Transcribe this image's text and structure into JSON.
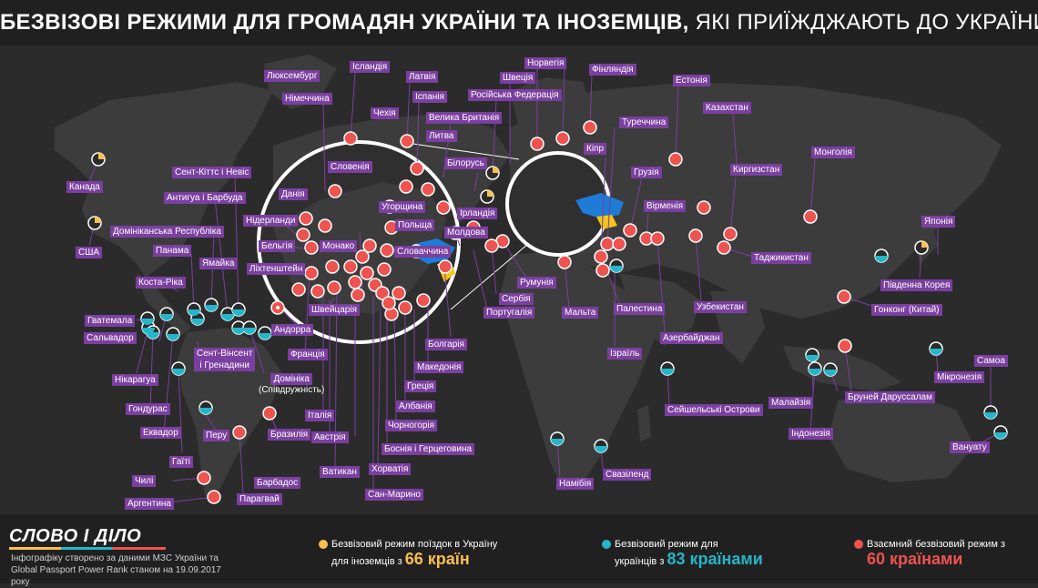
{
  "title": {
    "bold": "БЕЗВІЗОВІ РЕЖИМИ ДЛЯ ГРОМАДЯН УКРАЇНИ ТА ІНОЗЕМЦІВ,",
    "light": "ЯКІ ПРИЇЖДЖАЮТЬ ДО УКРАЇНИ"
  },
  "colors": {
    "yellow": "#fbbf4d",
    "cyan": "#25b6c9",
    "red": "#ef5350",
    "label_bg": "#7b3fa0",
    "land": "#3b3b3b",
    "ukraine_blue": "#1e7bd6",
    "ukraine_yellow": "#f5c518"
  },
  "labels": [
    "Люксембург",
    "Ісландія",
    "Норвегія",
    "Латвія",
    "Швеція",
    "Фінляндія",
    "Естонія",
    "Іспанія",
    "Російська Федерація",
    "Німеччина",
    "Чехія",
    "Велика Британія",
    "Казахстан",
    "Литва",
    "Туреччина",
    "Кіпр",
    "Монголія",
    "Словенія",
    "Білорусь",
    "Сент-Кіттс і Невіс",
    "Грузія",
    "Киргизстан",
    "Канада",
    "Данія",
    "Антигуа і Барбуда",
    "Угорщина",
    "Ірландія",
    "Вірменія",
    "Нідерланди",
    "Польща",
    "Японія",
    "Домініканська Республіка",
    "Бельгія",
    "Монако",
    "Молдова",
    "Панама",
    "Словаччина",
    "США",
    "Ямайка",
    "Ліхтенштейн",
    "Таджикистан",
    "Коста-Ріка",
    "Румунія",
    "Південна Корея",
    "Сербія",
    "Португалія",
    "Мальта",
    "Палестина",
    "Узбекистан",
    "Гонконг (Китай)",
    "Швейцарія",
    "Гватемала",
    "Андорра",
    "Сальвадор",
    "Болгарія",
    "Азербайджан",
    "Франція",
    "Ізраїль",
    "Македонія",
    "Самоа",
    "Нікарагуа",
    "Греція",
    "Мікронезія",
    "Малайзія",
    "Бруней Даруссалам",
    "Гондурас",
    "Албанія",
    "Сейшельські Острови",
    "Італія",
    "Чорногорія",
    "Еквадор",
    "Перу",
    "Бразилія",
    "Австрія",
    "Індонезія",
    "Боснія і Герцеговина",
    "Вануату",
    "Гаїті",
    "Ватикан",
    "Хорватія",
    "Свазіленд",
    "Намібія",
    "Чилі",
    "Барбадос",
    "Сан-Марино",
    "Аргентина",
    "Парагвай"
  ],
  "two_line_labels": {
    "grenadines": [
      "Сент-Вінсент",
      "і Гренадини"
    ]
  },
  "plain_labels": {
    "dominica": [
      "Домініка",
      "(Співдружність)"
    ]
  },
  "footer": {
    "logo": "СЛОВО І ДІЛО",
    "source": "Інфографіку створено за даними МЗС України та Global Passport Power Rank станом на 19.09.2017 року",
    "legend": [
      {
        "line1": "Безвізовий режим поїздок в Україну",
        "line2": "для іноземців з",
        "count": "66 країн",
        "color": "#fbbf4d"
      },
      {
        "line1": "Безвізовий режим для",
        "line2": "українців з",
        "count": "83 країнами",
        "color": "#25b6c9"
      },
      {
        "line1": "Взаємний безвізовий режим з",
        "line2": "",
        "count": "60 країнами",
        "color": "#ef5350"
      }
    ]
  }
}
